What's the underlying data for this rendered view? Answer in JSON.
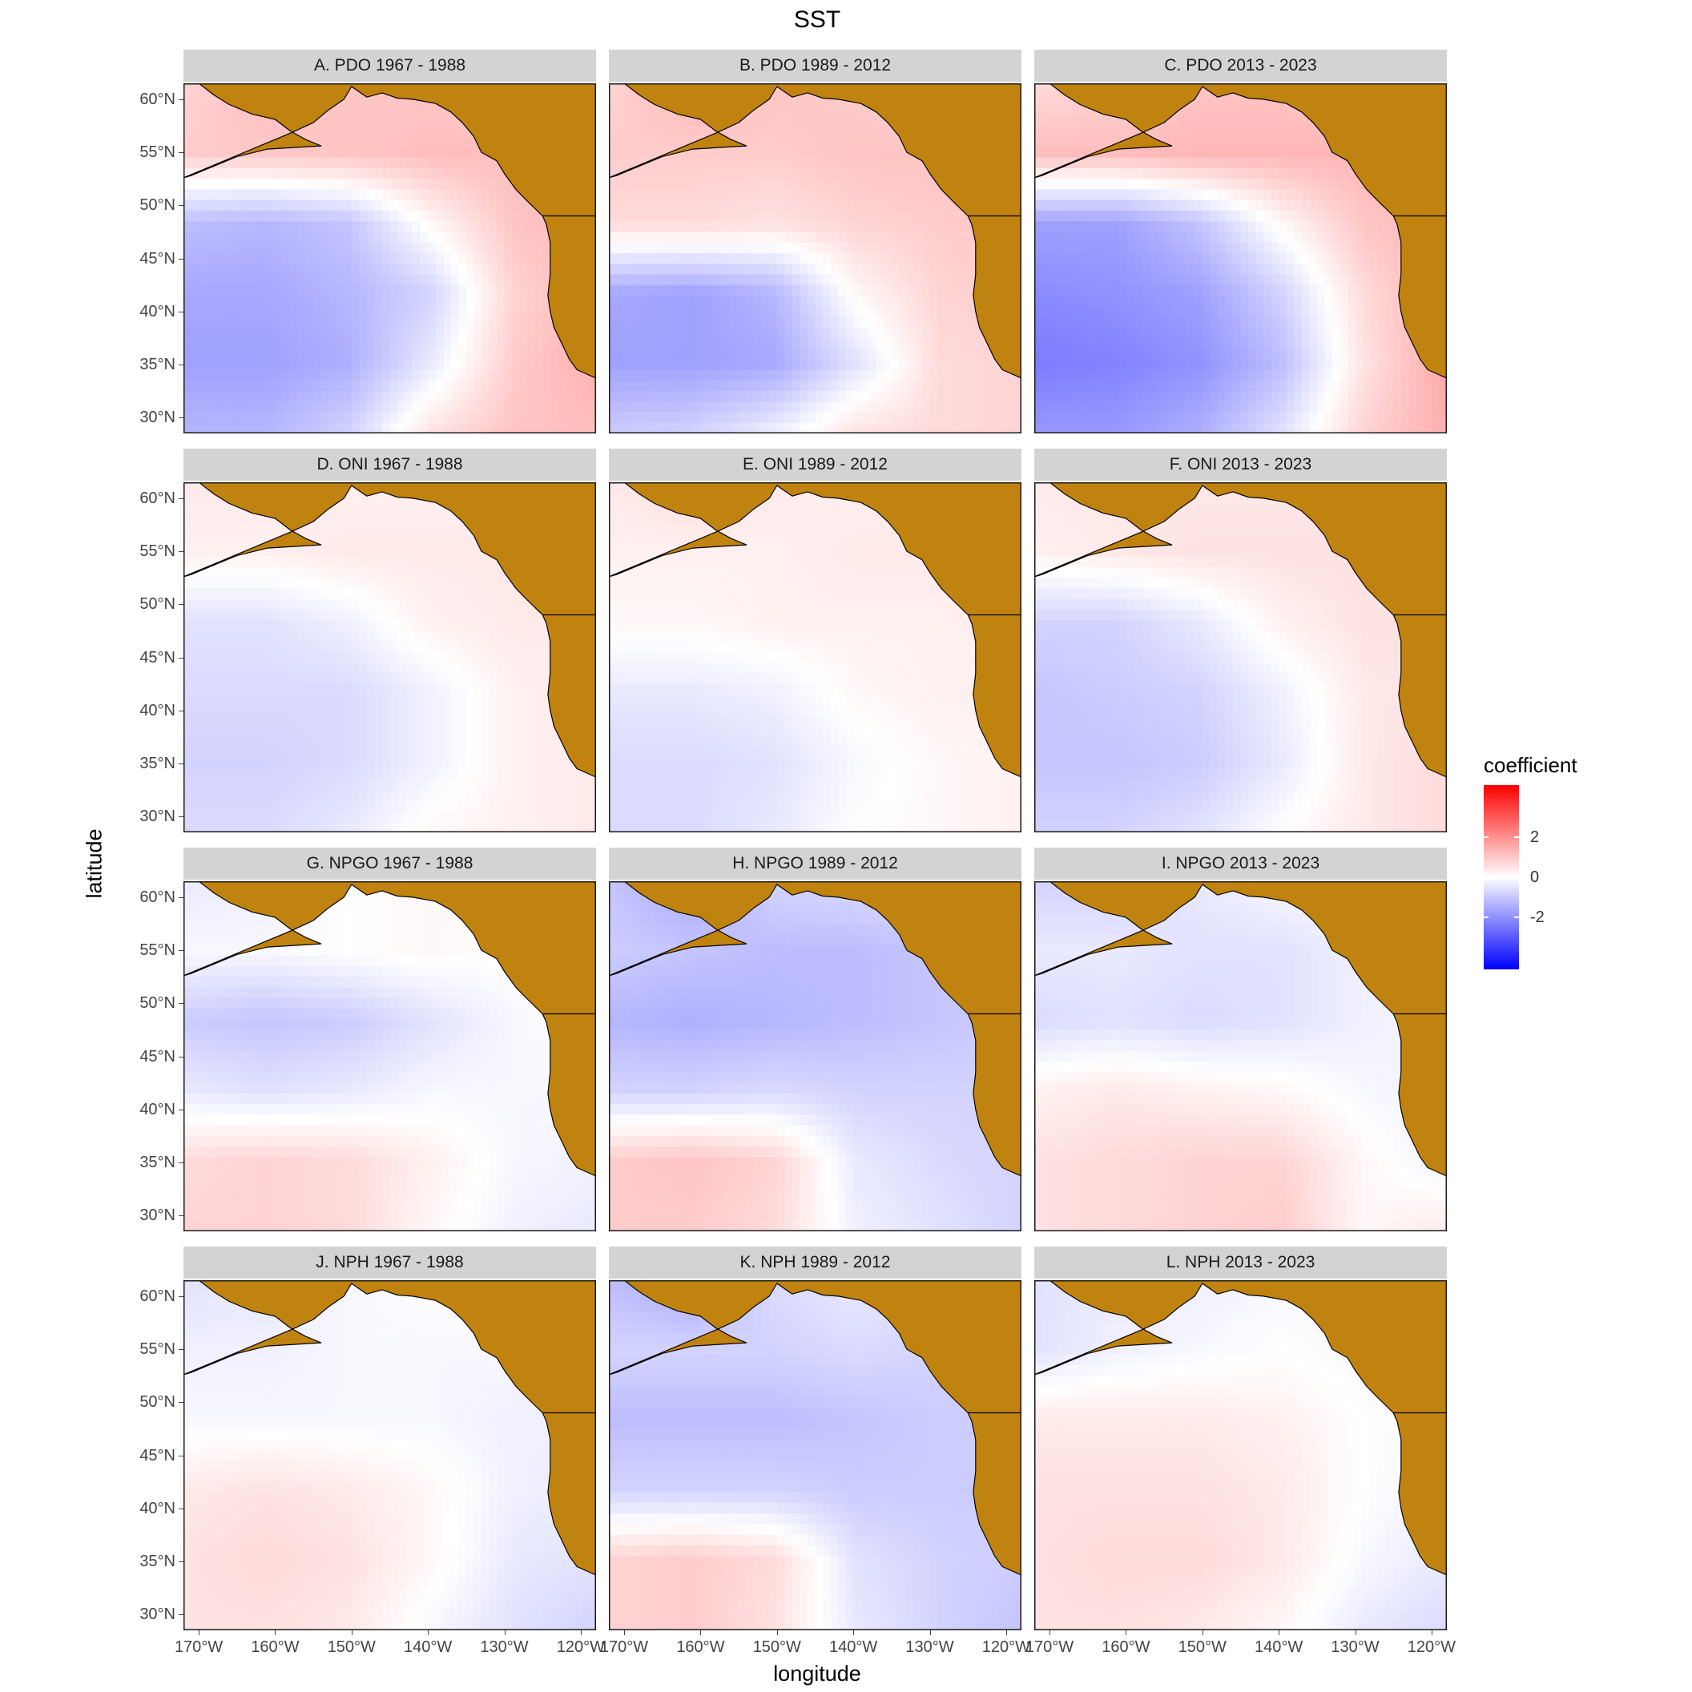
{
  "chart_data": {
    "type": "heatmap",
    "title": "SST",
    "xlabel": "longitude",
    "ylabel": "latitude",
    "xlim": [
      -172,
      -118
    ],
    "ylim": [
      28.5,
      61.5
    ],
    "x_ticks": [
      "170°W",
      "160°W",
      "150°W",
      "140°W",
      "130°W",
      "120°W"
    ],
    "y_ticks": [
      "60°N",
      "55°N",
      "50°N",
      "45°N",
      "40°N",
      "35°N",
      "30°N"
    ],
    "legend": {
      "title": "coefficient",
      "ticks": [
        "2",
        "0",
        "-2"
      ],
      "range": [
        -3.5,
        3.5
      ],
      "low_color": "#0000ff",
      "mid_color": "#ffffff",
      "high_color": "#ff0000"
    },
    "land_color": "#c0830f",
    "panels": [
      {
        "title": "A. PDO 1967 - 1988",
        "pattern": [
          [
            0.6,
            0.9,
            0.8,
            0.8,
            0.7,
            0.6
          ],
          [
            0.7,
            0.75,
            0.8,
            0.9,
            0.9,
            0.9
          ],
          [
            -0.9,
            -1.0,
            -0.8,
            0.1,
            0.8,
            1.0
          ],
          [
            -1.2,
            -1.2,
            -1.0,
            -0.6,
            0.6,
            1.0
          ],
          [
            -1.3,
            -1.3,
            -1.1,
            -0.3,
            0.7,
            1.1
          ],
          [
            -1.0,
            -1.0,
            -0.6,
            0.4,
            0.8,
            0.9
          ]
        ]
      },
      {
        "title": "B. PDO 1989 - 2012",
        "pattern": [
          [
            0.6,
            1.0,
            0.8,
            0.7,
            0.6,
            0.5
          ],
          [
            0.7,
            0.7,
            0.7,
            0.8,
            0.8,
            0.8
          ],
          [
            0.5,
            0.5,
            0.4,
            0.6,
            0.7,
            0.8
          ],
          [
            -1.2,
            -1.3,
            -1.0,
            0.1,
            0.6,
            0.7
          ],
          [
            -1.3,
            -1.3,
            -1.2,
            -0.4,
            0.5,
            0.6
          ],
          [
            -0.7,
            -0.6,
            -0.2,
            0.4,
            0.5,
            0.6
          ]
        ]
      },
      {
        "title": "C. PDO 2013 - 2023",
        "pattern": [
          [
            0.5,
            0.6,
            0.8,
            0.8,
            0.7,
            0.6
          ],
          [
            0.9,
            0.9,
            1.0,
            1.0,
            1.0,
            1.0
          ],
          [
            -1.3,
            -1.3,
            -0.8,
            0.1,
            0.8,
            1.0
          ],
          [
            -1.6,
            -1.5,
            -1.3,
            -0.6,
            0.5,
            1.1
          ],
          [
            -1.8,
            -1.7,
            -1.5,
            -0.9,
            0.4,
            1.2
          ],
          [
            -1.4,
            -1.4,
            -1.1,
            -0.4,
            0.6,
            1.1
          ]
        ]
      },
      {
        "title": "D. ONI 1967 - 1988",
        "pattern": [
          [
            0.3,
            0.3,
            0.2,
            0.2,
            0.2,
            0.2
          ],
          [
            0.2,
            0.2,
            0.3,
            0.3,
            0.3,
            0.3
          ],
          [
            -0.4,
            -0.4,
            -0.2,
            0.2,
            0.3,
            0.3
          ],
          [
            -0.5,
            -0.5,
            -0.5,
            -0.2,
            0.2,
            0.3
          ],
          [
            -0.6,
            -0.6,
            -0.5,
            -0.2,
            0.2,
            0.3
          ],
          [
            -0.5,
            -0.5,
            -0.3,
            0.1,
            0.2,
            0.3
          ]
        ]
      },
      {
        "title": "E. ONI 1989 - 2012",
        "pattern": [
          [
            0.3,
            0.5,
            0.3,
            0.2,
            0.2,
            0.2
          ],
          [
            0.2,
            0.2,
            0.2,
            0.3,
            0.3,
            0.3
          ],
          [
            0.1,
            0.1,
            0.2,
            0.2,
            0.2,
            0.3
          ],
          [
            -0.3,
            -0.3,
            -0.2,
            0.1,
            0.2,
            0.2
          ],
          [
            -0.5,
            -0.5,
            -0.4,
            -0.1,
            0.1,
            0.2
          ],
          [
            -0.5,
            -0.5,
            -0.3,
            0.0,
            0.1,
            0.2
          ]
        ]
      },
      {
        "title": "F. ONI 2013 - 2023",
        "pattern": [
          [
            0.3,
            0.3,
            0.3,
            0.3,
            0.3,
            0.3
          ],
          [
            0.2,
            0.3,
            0.4,
            0.4,
            0.4,
            0.4
          ],
          [
            -0.6,
            -0.6,
            -0.3,
            0.2,
            0.4,
            0.4
          ],
          [
            -0.8,
            -0.7,
            -0.6,
            -0.2,
            0.3,
            0.4
          ],
          [
            -0.8,
            -0.8,
            -0.7,
            -0.3,
            0.3,
            0.5
          ],
          [
            -0.6,
            -0.6,
            -0.4,
            0.0,
            0.3,
            0.5
          ]
        ]
      },
      {
        "title": "G. NPGO 1967 - 1988",
        "pattern": [
          [
            -0.3,
            -0.2,
            0.0,
            0.1,
            0.1,
            0.1
          ],
          [
            -0.1,
            -0.1,
            0.0,
            0.1,
            0.0,
            0.0
          ],
          [
            -0.7,
            -0.8,
            -0.7,
            -0.4,
            -0.1,
            0.0
          ],
          [
            -0.3,
            -0.4,
            -0.3,
            -0.1,
            -0.1,
            -0.1
          ],
          [
            0.5,
            0.6,
            0.5,
            0.2,
            -0.1,
            -0.2
          ],
          [
            0.6,
            0.6,
            0.5,
            0.1,
            -0.2,
            -0.3
          ]
        ]
      },
      {
        "title": "H. NPGO 1989 - 2012",
        "pattern": [
          [
            -0.8,
            -1.2,
            -0.6,
            -0.5,
            -0.5,
            -0.5
          ],
          [
            -0.7,
            -0.8,
            -0.9,
            -0.9,
            -0.8,
            -0.7
          ],
          [
            -1.0,
            -1.1,
            -1.0,
            -0.9,
            -0.8,
            -0.7
          ],
          [
            -0.6,
            -0.6,
            -0.5,
            -0.6,
            -0.6,
            -0.6
          ],
          [
            0.7,
            0.8,
            0.6,
            -0.3,
            -0.5,
            -0.6
          ],
          [
            0.7,
            0.7,
            0.5,
            -0.2,
            -0.4,
            -0.6
          ]
        ]
      },
      {
        "title": "I. NPGO 2013 - 2023",
        "pattern": [
          [
            -0.6,
            -0.6,
            -0.3,
            -0.1,
            0.0,
            0.0
          ],
          [
            -0.3,
            -0.3,
            -0.4,
            -0.4,
            -0.2,
            -0.1
          ],
          [
            -0.5,
            -0.4,
            -0.5,
            -0.4,
            -0.2,
            -0.1
          ],
          [
            0.2,
            0.3,
            0.2,
            0.1,
            -0.1,
            -0.2
          ],
          [
            0.4,
            0.5,
            0.6,
            0.6,
            0.1,
            -0.2
          ],
          [
            0.4,
            0.5,
            0.6,
            0.7,
            0.1,
            0.3
          ]
        ]
      },
      {
        "title": "J. NPH 1967 - 1988",
        "pattern": [
          [
            -0.4,
            -0.3,
            -0.1,
            0.0,
            0.0,
            0.0
          ],
          [
            -0.2,
            -0.2,
            -0.1,
            -0.1,
            -0.1,
            -0.1
          ],
          [
            -0.1,
            -0.1,
            -0.1,
            -0.1,
            -0.2,
            -0.2
          ],
          [
            0.3,
            0.4,
            0.3,
            0.1,
            -0.2,
            -0.3
          ],
          [
            0.4,
            0.5,
            0.4,
            0.1,
            -0.3,
            -0.4
          ],
          [
            0.4,
            0.4,
            0.3,
            -0.1,
            -0.4,
            -0.6
          ]
        ]
      },
      {
        "title": "K. NPH 1989 - 2012",
        "pattern": [
          [
            -0.9,
            -1.2,
            -0.5,
            -0.3,
            -0.4,
            -0.4
          ],
          [
            -0.6,
            -0.6,
            -0.6,
            -0.5,
            -0.6,
            -0.6
          ],
          [
            -0.9,
            -0.9,
            -0.9,
            -0.8,
            -0.7,
            -0.7
          ],
          [
            -0.6,
            -0.6,
            -0.6,
            -0.7,
            -0.7,
            -0.7
          ],
          [
            0.6,
            0.7,
            0.5,
            -0.4,
            -0.6,
            -0.7
          ],
          [
            0.6,
            0.7,
            0.4,
            -0.3,
            -0.6,
            -0.8
          ]
        ]
      },
      {
        "title": "L. NPH 2013 - 2023",
        "pattern": [
          [
            -0.4,
            -0.3,
            -0.2,
            -0.1,
            -0.1,
            -0.1
          ],
          [
            -0.4,
            -0.2,
            -0.1,
            0.0,
            -0.1,
            -0.1
          ],
          [
            0.3,
            0.3,
            0.3,
            0.2,
            0.0,
            -0.1
          ],
          [
            0.4,
            0.4,
            0.4,
            0.3,
            0.0,
            -0.2
          ],
          [
            0.4,
            0.5,
            0.5,
            0.3,
            -0.1,
            -0.3
          ],
          [
            0.4,
            0.4,
            0.3,
            0.1,
            -0.3,
            -0.5
          ]
        ]
      }
    ]
  }
}
